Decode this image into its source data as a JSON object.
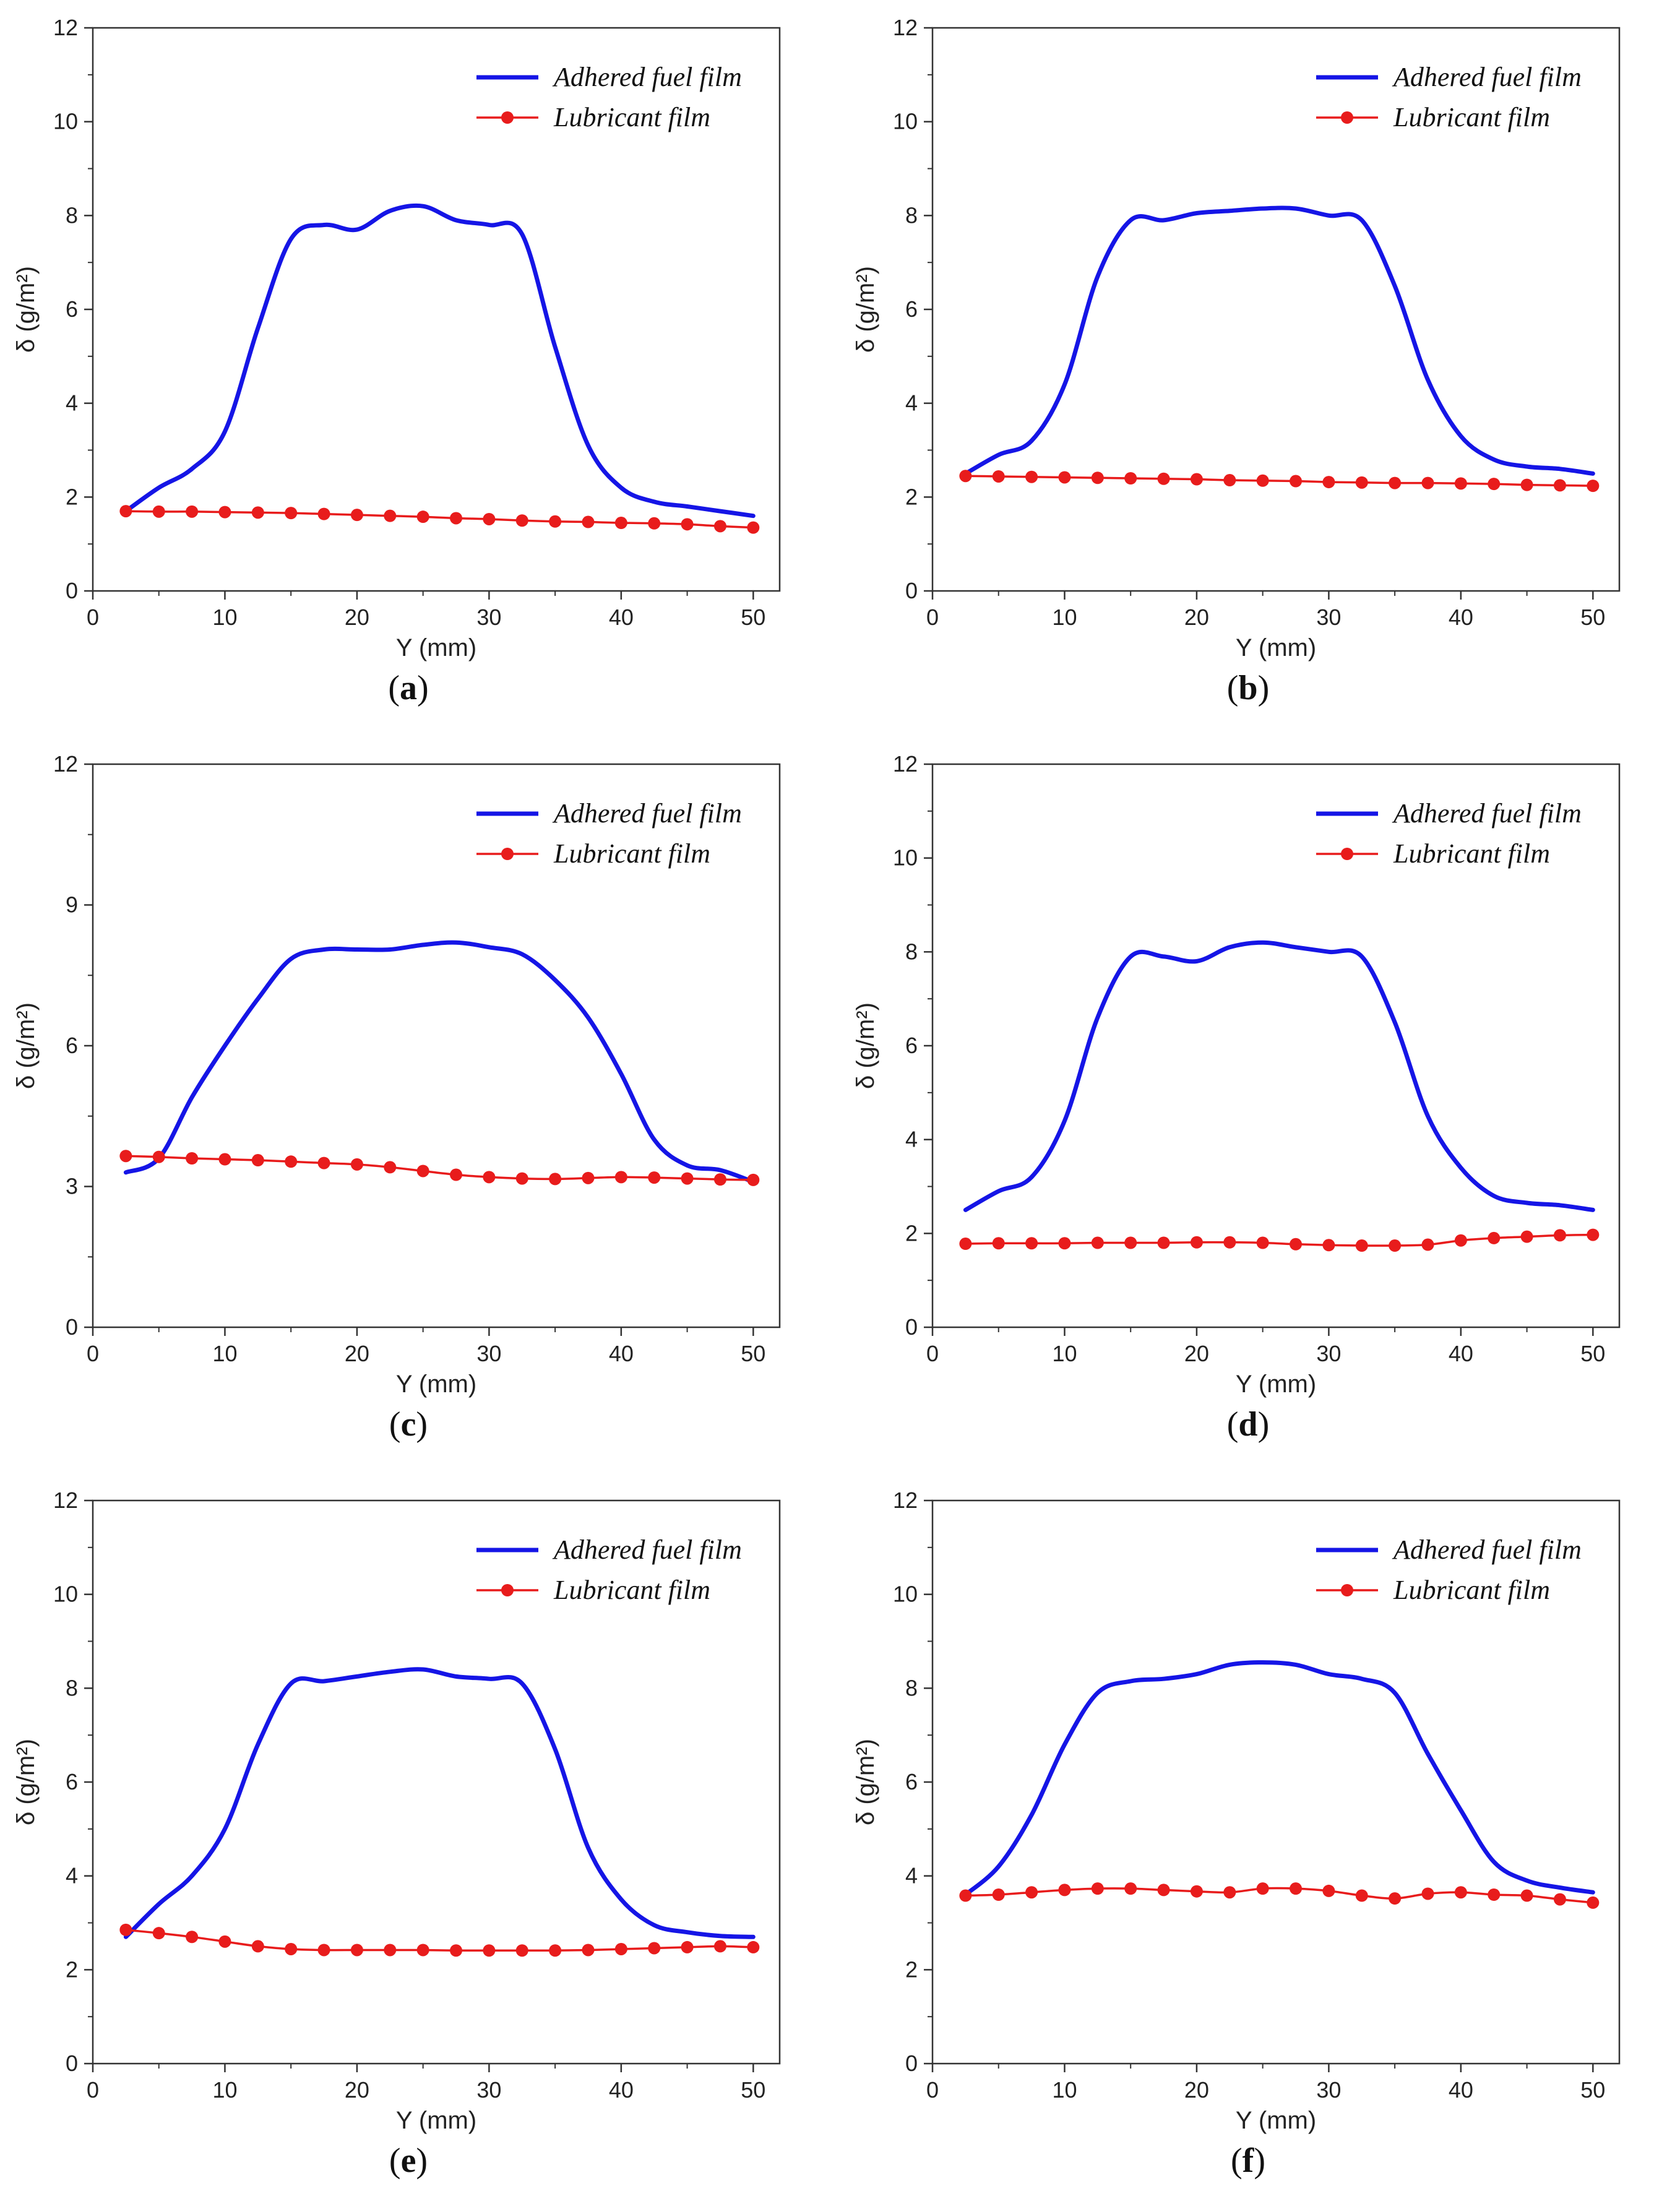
{
  "figure": {
    "panels": [
      {
        "id": "a",
        "caption_open": "(",
        "caption_letter": "a",
        "caption_close": ")"
      },
      {
        "id": "b",
        "caption_open": "(",
        "caption_letter": "b",
        "caption_close": ")"
      },
      {
        "id": "c",
        "caption_open": "(",
        "caption_letter": "c",
        "caption_close": ")"
      },
      {
        "id": "d",
        "caption_open": "(",
        "caption_letter": "d",
        "caption_close": ")"
      },
      {
        "id": "e",
        "caption_open": "(",
        "caption_letter": "e",
        "caption_close": ")"
      },
      {
        "id": "f",
        "caption_open": "(",
        "caption_letter": "f",
        "caption_close": ")"
      }
    ]
  },
  "colors": {
    "fuel": "#1515e6",
    "lubricant": "#e81c1c",
    "axis": "#333333"
  },
  "chart_data": [
    {
      "type": "line",
      "panel": "a",
      "xlabel": "Y (mm)",
      "ylabel": "δ (g/m²)",
      "xlim": [
        0,
        52
      ],
      "ylim": [
        0,
        12
      ],
      "xticks": [
        0,
        10,
        20,
        30,
        40,
        50
      ],
      "yticks": [
        0,
        2,
        4,
        6,
        8,
        10,
        12
      ],
      "series": [
        {
          "name": "Adhered fuel film",
          "marker": "none",
          "x": [
            2.5,
            5,
            7.5,
            10,
            12.5,
            15,
            17.5,
            20,
            22.5,
            25,
            27.5,
            30,
            32.5,
            35,
            37.5,
            40,
            42.5,
            45,
            47.5,
            50
          ],
          "values": [
            1.7,
            2.2,
            2.6,
            3.4,
            5.6,
            7.5,
            7.8,
            7.7,
            8.1,
            8.2,
            7.9,
            7.8,
            7.6,
            5.2,
            3.1,
            2.2,
            1.9,
            1.8,
            1.7,
            1.6
          ]
        },
        {
          "name": "Lubricant film",
          "marker": "circle",
          "x": [
            2.5,
            5,
            7.5,
            10,
            12.5,
            15,
            17.5,
            20,
            22.5,
            25,
            27.5,
            30,
            32.5,
            35,
            37.5,
            40,
            42.5,
            45,
            47.5,
            50
          ],
          "values": [
            1.7,
            1.69,
            1.69,
            1.68,
            1.67,
            1.66,
            1.64,
            1.62,
            1.6,
            1.58,
            1.55,
            1.53,
            1.5,
            1.48,
            1.47,
            1.45,
            1.44,
            1.42,
            1.38,
            1.35
          ]
        }
      ]
    },
    {
      "type": "line",
      "panel": "b",
      "xlabel": "Y (mm)",
      "ylabel": "δ (g/m²)",
      "xlim": [
        0,
        52
      ],
      "ylim": [
        0,
        12
      ],
      "xticks": [
        0,
        10,
        20,
        30,
        40,
        50
      ],
      "yticks": [
        0,
        2,
        4,
        6,
        8,
        10,
        12
      ],
      "series": [
        {
          "name": "Adhered fuel film",
          "marker": "none",
          "x": [
            2.5,
            5,
            7.5,
            10,
            12.5,
            15,
            17.5,
            20,
            22.5,
            25,
            27.5,
            30,
            32.5,
            35,
            37.5,
            40,
            42.5,
            45,
            47.5,
            50
          ],
          "values": [
            2.5,
            2.9,
            3.2,
            4.4,
            6.7,
            7.9,
            7.9,
            8.05,
            8.1,
            8.15,
            8.15,
            8.0,
            7.9,
            6.5,
            4.5,
            3.3,
            2.8,
            2.65,
            2.6,
            2.5
          ]
        },
        {
          "name": "Lubricant film",
          "marker": "circle",
          "x": [
            2.5,
            5,
            7.5,
            10,
            12.5,
            15,
            17.5,
            20,
            22.5,
            25,
            27.5,
            30,
            32.5,
            35,
            37.5,
            40,
            42.5,
            45,
            47.5,
            50
          ],
          "values": [
            2.45,
            2.44,
            2.43,
            2.42,
            2.41,
            2.4,
            2.39,
            2.38,
            2.36,
            2.35,
            2.34,
            2.32,
            2.31,
            2.3,
            2.3,
            2.29,
            2.28,
            2.26,
            2.25,
            2.24
          ]
        }
      ]
    },
    {
      "type": "line",
      "panel": "c",
      "xlabel": "Y (mm)",
      "ylabel": "δ (g/m²)",
      "xlim": [
        0,
        52
      ],
      "ylim": [
        0,
        12
      ],
      "xticks": [
        0,
        10,
        20,
        30,
        40,
        50
      ],
      "yticks": [
        0,
        3,
        6,
        9,
        12
      ],
      "series": [
        {
          "name": "Adhered fuel film",
          "marker": "none",
          "x": [
            2.5,
            5,
            7.5,
            10,
            12.5,
            15,
            17.5,
            20,
            22.5,
            25,
            27.5,
            30,
            32.5,
            35,
            37.5,
            40,
            42.5,
            45,
            47.5,
            50
          ],
          "values": [
            3.3,
            3.6,
            4.9,
            6.0,
            7.0,
            7.85,
            8.05,
            8.05,
            8.05,
            8.15,
            8.2,
            8.1,
            7.95,
            7.4,
            6.6,
            5.4,
            4.0,
            3.45,
            3.35,
            3.1
          ]
        },
        {
          "name": "Lubricant film",
          "marker": "circle",
          "x": [
            2.5,
            5,
            7.5,
            10,
            12.5,
            15,
            17.5,
            20,
            22.5,
            25,
            27.5,
            30,
            32.5,
            35,
            37.5,
            40,
            42.5,
            45,
            47.5,
            50
          ],
          "values": [
            3.65,
            3.63,
            3.6,
            3.58,
            3.56,
            3.53,
            3.5,
            3.47,
            3.41,
            3.33,
            3.25,
            3.2,
            3.17,
            3.16,
            3.18,
            3.2,
            3.19,
            3.17,
            3.15,
            3.14
          ]
        }
      ]
    },
    {
      "type": "line",
      "panel": "d",
      "xlabel": "Y (mm)",
      "ylabel": "δ (g/m²)",
      "xlim": [
        0,
        52
      ],
      "ylim": [
        0,
        12
      ],
      "xticks": [
        0,
        10,
        20,
        30,
        40,
        50
      ],
      "yticks": [
        0,
        2,
        4,
        6,
        8,
        10,
        12
      ],
      "series": [
        {
          "name": "Adhered fuel film",
          "marker": "none",
          "x": [
            2.5,
            5,
            7.5,
            10,
            12.5,
            15,
            17.5,
            20,
            22.5,
            25,
            27.5,
            30,
            32.5,
            35,
            37.5,
            40,
            42.5,
            45,
            47.5,
            50
          ],
          "values": [
            2.5,
            2.9,
            3.2,
            4.4,
            6.6,
            7.9,
            7.9,
            7.8,
            8.1,
            8.2,
            8.1,
            8.0,
            7.9,
            6.5,
            4.5,
            3.4,
            2.8,
            2.65,
            2.6,
            2.5
          ]
        },
        {
          "name": "Lubricant film",
          "marker": "circle",
          "x": [
            2.5,
            5,
            7.5,
            10,
            12.5,
            15,
            17.5,
            20,
            22.5,
            25,
            27.5,
            30,
            32.5,
            35,
            37.5,
            40,
            42.5,
            45,
            47.5,
            50
          ],
          "values": [
            1.78,
            1.79,
            1.79,
            1.79,
            1.8,
            1.8,
            1.8,
            1.81,
            1.81,
            1.8,
            1.77,
            1.75,
            1.74,
            1.74,
            1.76,
            1.85,
            1.9,
            1.93,
            1.96,
            1.97
          ]
        }
      ]
    },
    {
      "type": "line",
      "panel": "e",
      "xlabel": "Y (mm)",
      "ylabel": "δ (g/m²)",
      "xlim": [
        0,
        52
      ],
      "ylim": [
        0,
        12
      ],
      "xticks": [
        0,
        10,
        20,
        30,
        40,
        50
      ],
      "yticks": [
        0,
        2,
        4,
        6,
        8,
        10,
        12
      ],
      "series": [
        {
          "name": "Adhered fuel film",
          "marker": "none",
          "x": [
            2.5,
            5,
            7.5,
            10,
            12.5,
            15,
            17.5,
            20,
            22.5,
            25,
            27.5,
            30,
            32.5,
            35,
            37.5,
            40,
            42.5,
            45,
            47.5,
            50
          ],
          "values": [
            2.7,
            3.4,
            4.0,
            5.0,
            6.8,
            8.1,
            8.15,
            8.25,
            8.35,
            8.4,
            8.25,
            8.2,
            8.1,
            6.7,
            4.6,
            3.5,
            2.95,
            2.8,
            2.72,
            2.7
          ]
        },
        {
          "name": "Lubricant film",
          "marker": "circle",
          "x": [
            2.5,
            5,
            7.5,
            10,
            12.5,
            15,
            17.5,
            20,
            22.5,
            25,
            27.5,
            30,
            32.5,
            35,
            37.5,
            40,
            42.5,
            45,
            47.5,
            50
          ],
          "values": [
            2.85,
            2.78,
            2.7,
            2.6,
            2.5,
            2.44,
            2.42,
            2.42,
            2.42,
            2.42,
            2.41,
            2.41,
            2.41,
            2.41,
            2.42,
            2.44,
            2.46,
            2.48,
            2.5,
            2.48
          ]
        }
      ]
    },
    {
      "type": "line",
      "panel": "f",
      "xlabel": "Y (mm)",
      "ylabel": "δ (g/m²)",
      "xlim": [
        0,
        52
      ],
      "ylim": [
        0,
        12
      ],
      "xticks": [
        0,
        10,
        20,
        30,
        40,
        50
      ],
      "yticks": [
        0,
        2,
        4,
        6,
        8,
        10,
        12
      ],
      "series": [
        {
          "name": "Adhered fuel film",
          "marker": "none",
          "x": [
            2.5,
            5,
            7.5,
            10,
            12.5,
            15,
            17.5,
            20,
            22.5,
            25,
            27.5,
            30,
            32.5,
            35,
            37.5,
            40,
            42.5,
            45,
            47.5,
            50
          ],
          "values": [
            3.6,
            4.2,
            5.3,
            6.8,
            7.9,
            8.15,
            8.2,
            8.3,
            8.5,
            8.55,
            8.5,
            8.3,
            8.2,
            7.9,
            6.6,
            5.4,
            4.3,
            3.9,
            3.75,
            3.65
          ]
        },
        {
          "name": "Lubricant film",
          "marker": "circle",
          "x": [
            2.5,
            5,
            7.5,
            10,
            12.5,
            15,
            17.5,
            20,
            22.5,
            25,
            27.5,
            30,
            32.5,
            35,
            37.5,
            40,
            42.5,
            45,
            47.5,
            50
          ],
          "values": [
            3.58,
            3.6,
            3.65,
            3.7,
            3.73,
            3.73,
            3.7,
            3.67,
            3.65,
            3.73,
            3.73,
            3.68,
            3.58,
            3.52,
            3.62,
            3.65,
            3.6,
            3.58,
            3.5,
            3.43
          ]
        }
      ]
    }
  ]
}
